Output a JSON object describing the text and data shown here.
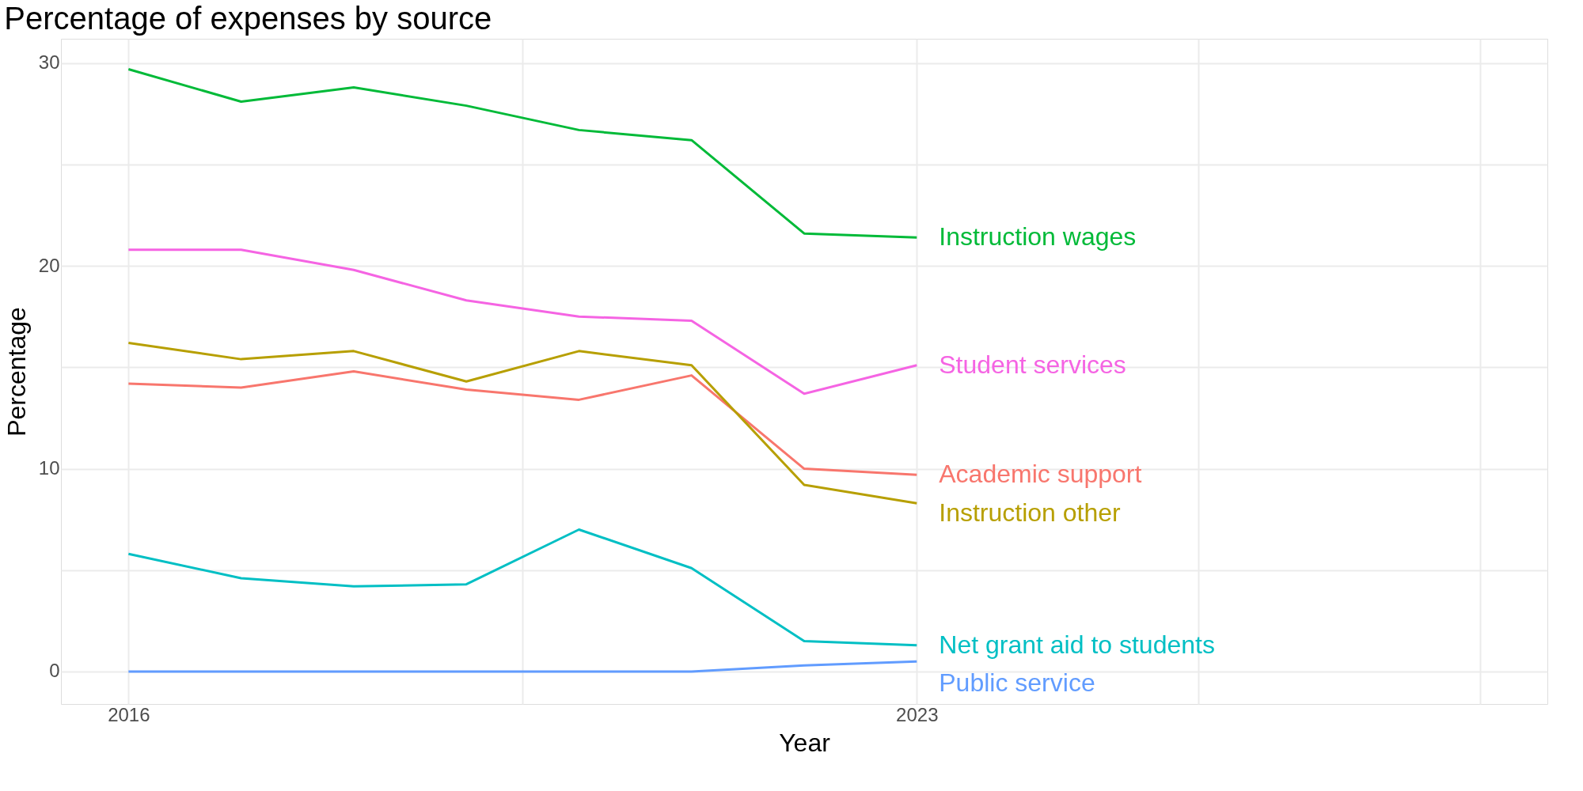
{
  "chart_data": {
    "type": "line",
    "title": "Percentage of expenses by source",
    "xlabel": "Year",
    "ylabel": "Percentage",
    "x": [
      2016,
      2017,
      2018,
      2019,
      2020,
      2021,
      2022,
      2023
    ],
    "series": [
      {
        "name": "Instruction wages",
        "color": "#00BA38",
        "values": [
          29.7,
          28.1,
          28.8,
          27.9,
          26.7,
          26.2,
          21.6,
          21.4
        ]
      },
      {
        "name": "Student services",
        "color": "#F564E3",
        "values": [
          20.8,
          20.8,
          19.8,
          18.3,
          17.5,
          17.3,
          13.7,
          15.1
        ]
      },
      {
        "name": "Academic support",
        "color": "#F8766D",
        "values": [
          14.2,
          14.0,
          14.8,
          13.9,
          13.4,
          14.6,
          10.0,
          9.7
        ]
      },
      {
        "name": "Instruction other",
        "color": "#B79F00",
        "values": [
          16.2,
          15.4,
          15.8,
          14.3,
          15.8,
          15.1,
          9.2,
          8.3
        ]
      },
      {
        "name": "Net grant aid to students",
        "color": "#00BFC4",
        "values": [
          5.8,
          4.6,
          4.2,
          4.3,
          7.0,
          5.1,
          1.5,
          1.3
        ]
      },
      {
        "name": "Public service",
        "color": "#619CFF",
        "values": [
          0.0,
          0.0,
          0.0,
          0.0,
          0.0,
          0.0,
          0.3,
          0.5
        ]
      }
    ],
    "xlim": [
      2015.4,
      2028.6
    ],
    "xticks": [
      2016,
      {
        "value": 2019.5,
        "label": null
      },
      2023,
      {
        "value": 2025.5,
        "label": null
      },
      {
        "value": 2028,
        "label": null
      }
    ],
    "ylim": [
      -1.6,
      31.2
    ],
    "yticks": [
      0,
      {
        "value": 5,
        "label": null
      },
      10,
      {
        "value": 15,
        "label": null
      },
      20,
      {
        "value": 25,
        "label": null
      },
      30
    ],
    "grid": true,
    "legend": false,
    "marker": "none",
    "line_style": "solid"
  }
}
